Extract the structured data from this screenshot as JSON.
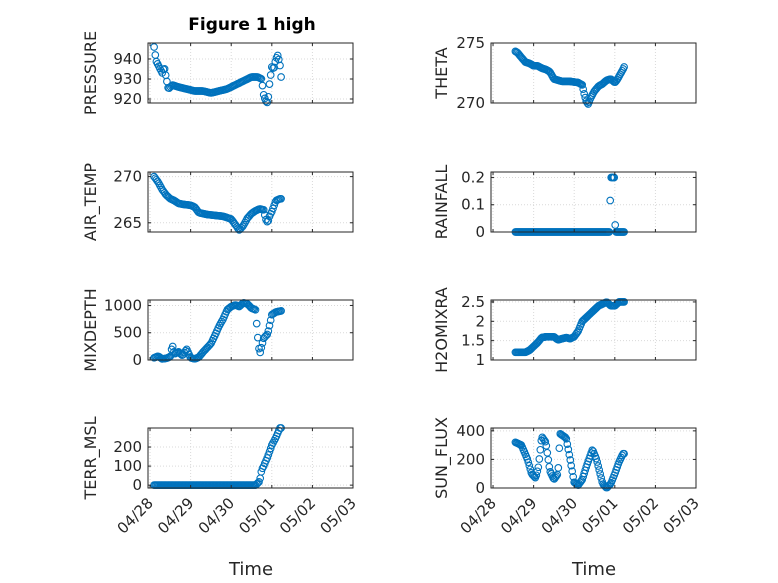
{
  "figure": {
    "title": "Figure 1 high",
    "xlabel": "Time",
    "xticks": [
      "04/28",
      "04/29",
      "04/30",
      "05/01",
      "05/02",
      "05/03"
    ],
    "marker_color": "#0072BD"
  },
  "chart_data": [
    {
      "type": "scatter",
      "ylabel": "PRESSURE",
      "ylim": [
        918,
        948
      ],
      "yticks": [
        920,
        930,
        940
      ],
      "yticklabels": [
        "920",
        "930",
        "940"
      ],
      "x_start_day": 0.1,
      "x_end_day": 3.23,
      "knots": [
        [
          0.1,
          946
        ],
        [
          0.15,
          939
        ],
        [
          0.2,
          937
        ],
        [
          0.3,
          933
        ],
        [
          0.35,
          936
        ],
        [
          0.45,
          925
        ],
        [
          0.55,
          927
        ],
        [
          0.7,
          926
        ],
        [
          0.9,
          925
        ],
        [
          1.1,
          924
        ],
        [
          1.3,
          924
        ],
        [
          1.5,
          923
        ],
        [
          1.7,
          924
        ],
        [
          1.9,
          925
        ],
        [
          2.1,
          927
        ],
        [
          2.3,
          929
        ],
        [
          2.5,
          931
        ],
        [
          2.65,
          931
        ],
        [
          2.75,
          930
        ],
        [
          2.8,
          922
        ],
        [
          2.85,
          919
        ],
        [
          2.9,
          918
        ],
        [
          2.95,
          929
        ],
        [
          3.0,
          936
        ],
        [
          3.05,
          935
        ],
        [
          3.1,
          940
        ],
        [
          3.15,
          942
        ],
        [
          3.2,
          937
        ],
        [
          3.23,
          931
        ]
      ],
      "series_count": 1
    },
    {
      "type": "scatter",
      "ylabel": "THETA",
      "ylim": [
        270,
        275
      ],
      "yticks": [
        270,
        275
      ],
      "yticklabels": [
        "270",
        "275"
      ],
      "x_start_day": 0.55,
      "x_end_day": 3.23,
      "knots": [
        [
          0.55,
          274.3
        ],
        [
          0.6,
          274.2
        ],
        [
          0.7,
          273.8
        ],
        [
          0.8,
          273.4
        ],
        [
          0.9,
          273.3
        ],
        [
          1.0,
          273.1
        ],
        [
          1.1,
          273.1
        ],
        [
          1.2,
          272.9
        ],
        [
          1.3,
          272.8
        ],
        [
          1.4,
          272.6
        ],
        [
          1.5,
          272.0
        ],
        [
          1.7,
          271.8
        ],
        [
          1.9,
          271.8
        ],
        [
          2.1,
          271.7
        ],
        [
          2.2,
          271.5
        ],
        [
          2.25,
          270.7
        ],
        [
          2.3,
          270.1
        ],
        [
          2.35,
          269.9
        ],
        [
          2.4,
          270.4
        ],
        [
          2.5,
          271.0
        ],
        [
          2.6,
          271.4
        ],
        [
          2.7,
          271.6
        ],
        [
          2.8,
          271.9
        ],
        [
          2.9,
          272.0
        ],
        [
          3.0,
          271.7
        ],
        [
          3.05,
          271.9
        ],
        [
          3.1,
          272.2
        ],
        [
          3.2,
          272.8
        ],
        [
          3.23,
          273.0
        ]
      ],
      "series_count": 1
    },
    {
      "type": "scatter",
      "ylabel": "AIR_TEMP",
      "ylim": [
        264,
        270.5
      ],
      "yticks": [
        265,
        270
      ],
      "yticklabels": [
        "265",
        "270"
      ],
      "x_start_day": 0.1,
      "x_end_day": 3.23,
      "knots": [
        [
          0.1,
          270
        ],
        [
          0.2,
          269.4
        ],
        [
          0.3,
          268.6
        ],
        [
          0.4,
          268.0
        ],
        [
          0.5,
          267.6
        ],
        [
          0.6,
          267.4
        ],
        [
          0.7,
          267.1
        ],
        [
          0.8,
          267.0
        ],
        [
          1.0,
          266.9
        ],
        [
          1.1,
          266.7
        ],
        [
          1.2,
          266.1
        ],
        [
          1.4,
          265.9
        ],
        [
          1.6,
          265.8
        ],
        [
          1.8,
          265.7
        ],
        [
          2.0,
          265.4
        ],
        [
          2.1,
          264.8
        ],
        [
          2.2,
          264.2
        ],
        [
          2.3,
          264.7
        ],
        [
          2.4,
          265.5
        ],
        [
          2.5,
          266.0
        ],
        [
          2.6,
          266.3
        ],
        [
          2.7,
          266.5
        ],
        [
          2.8,
          266.4
        ],
        [
          2.85,
          265.4
        ],
        [
          2.9,
          265.0
        ],
        [
          2.95,
          265.8
        ],
        [
          3.0,
          266.2
        ],
        [
          3.05,
          266.8
        ],
        [
          3.1,
          267.4
        ],
        [
          3.2,
          267.6
        ],
        [
          3.23,
          267.6
        ]
      ],
      "series_count": 1
    },
    {
      "type": "scatter",
      "ylabel": "RAINFALL",
      "ylim": [
        0,
        0.22
      ],
      "yticks": [
        0,
        0.1,
        0.2
      ],
      "yticklabels": [
        "0",
        "0.1",
        "0.2"
      ],
      "x_start_day": 0.55,
      "x_end_day": 3.23,
      "knots": [
        [
          0.55,
          0
        ],
        [
          2.88,
          0
        ],
        [
          2.89,
          0.2
        ],
        [
          3.0,
          0.2
        ],
        [
          3.01,
          0
        ],
        [
          3.23,
          0
        ]
      ],
      "series_count": 1
    },
    {
      "type": "scatter",
      "ylabel": "MIXDEPTH",
      "ylim": [
        0,
        1100
      ],
      "yticks": [
        0,
        500,
        1000
      ],
      "yticklabels": [
        "0",
        "500",
        "1000"
      ],
      "x_start_day": 0.1,
      "x_end_day": 3.23,
      "knots": [
        [
          0.1,
          40
        ],
        [
          0.2,
          70
        ],
        [
          0.3,
          20
        ],
        [
          0.4,
          30
        ],
        [
          0.5,
          60
        ],
        [
          0.55,
          280
        ],
        [
          0.6,
          110
        ],
        [
          0.7,
          150
        ],
        [
          0.8,
          80
        ],
        [
          0.9,
          200
        ],
        [
          1.0,
          40
        ],
        [
          1.1,
          20
        ],
        [
          1.2,
          50
        ],
        [
          1.3,
          140
        ],
        [
          1.4,
          220
        ],
        [
          1.5,
          300
        ],
        [
          1.6,
          450
        ],
        [
          1.7,
          620
        ],
        [
          1.8,
          750
        ],
        [
          1.9,
          920
        ],
        [
          2.0,
          980
        ],
        [
          2.1,
          1010
        ],
        [
          2.2,
          980
        ],
        [
          2.3,
          1050
        ],
        [
          2.4,
          1030
        ],
        [
          2.5,
          950
        ],
        [
          2.6,
          920
        ],
        [
          2.65,
          450
        ],
        [
          2.7,
          100
        ],
        [
          2.75,
          250
        ],
        [
          2.8,
          400
        ],
        [
          2.9,
          480
        ],
        [
          3.0,
          830
        ],
        [
          3.1,
          880
        ],
        [
          3.23,
          900
        ]
      ],
      "series_count": 1
    },
    {
      "type": "scatter",
      "ylabel": "H2OMIXRA",
      "ylim": [
        1.0,
        2.55
      ],
      "yticks": [
        1,
        1.5,
        2,
        2.5
      ],
      "yticklabels": [
        "1",
        "1.5",
        "2",
        "2.5"
      ],
      "x_start_day": 0.55,
      "x_end_day": 3.23,
      "knots": [
        [
          0.55,
          1.2
        ],
        [
          0.8,
          1.2
        ],
        [
          0.9,
          1.25
        ],
        [
          1.0,
          1.35
        ],
        [
          1.1,
          1.45
        ],
        [
          1.2,
          1.58
        ],
        [
          1.3,
          1.6
        ],
        [
          1.5,
          1.6
        ],
        [
          1.6,
          1.52
        ],
        [
          1.7,
          1.55
        ],
        [
          1.8,
          1.58
        ],
        [
          1.9,
          1.55
        ],
        [
          2.0,
          1.6
        ],
        [
          2.1,
          1.75
        ],
        [
          2.2,
          2.0
        ],
        [
          2.3,
          2.1
        ],
        [
          2.4,
          2.2
        ],
        [
          2.5,
          2.3
        ],
        [
          2.6,
          2.4
        ],
        [
          2.7,
          2.45
        ],
        [
          2.8,
          2.5
        ],
        [
          2.9,
          2.4
        ],
        [
          3.0,
          2.4
        ],
        [
          3.1,
          2.5
        ],
        [
          3.23,
          2.5
        ]
      ],
      "series_count": 1
    },
    {
      "type": "scatter",
      "ylabel": "TERR_MSL",
      "ylim": [
        -15,
        300
      ],
      "yticks": [
        0,
        100,
        200
      ],
      "yticklabels": [
        "0",
        "100",
        "200"
      ],
      "x_start_day": 0.1,
      "x_end_day": 3.23,
      "knots": [
        [
          0.1,
          0
        ],
        [
          2.5,
          0
        ],
        [
          2.6,
          0
        ],
        [
          2.7,
          20
        ],
        [
          2.75,
          80
        ],
        [
          2.8,
          100
        ],
        [
          2.9,
          150
        ],
        [
          3.0,
          210
        ],
        [
          3.1,
          250
        ],
        [
          3.2,
          300
        ]
      ],
      "series_count": 1
    },
    {
      "type": "scatter",
      "ylabel": "SUN_FLUX",
      "ylim": [
        0,
        420
      ],
      "yticks": [
        0,
        200,
        400
      ],
      "yticklabels": [
        "0",
        "200",
        "400"
      ],
      "x_start_day": 0.55,
      "x_end_day": 3.23,
      "knots": [
        [
          0.55,
          320
        ],
        [
          0.7,
          300
        ],
        [
          0.85,
          200
        ],
        [
          0.95,
          100
        ],
        [
          1.05,
          70
        ],
        [
          1.12,
          150
        ],
        [
          1.2,
          360
        ],
        [
          1.3,
          320
        ],
        [
          1.4,
          120
        ],
        [
          1.5,
          60
        ],
        [
          1.6,
          100
        ],
        [
          1.65,
          380
        ],
        [
          1.8,
          350
        ],
        [
          1.9,
          200
        ],
        [
          2.0,
          40
        ],
        [
          2.1,
          20
        ],
        [
          2.2,
          60
        ],
        [
          2.3,
          150
        ],
        [
          2.45,
          270
        ],
        [
          2.55,
          200
        ],
        [
          2.7,
          30
        ],
        [
          2.8,
          0
        ],
        [
          2.9,
          30
        ],
        [
          3.0,
          100
        ],
        [
          3.1,
          180
        ],
        [
          3.2,
          240
        ]
      ],
      "series_count": 1
    }
  ]
}
